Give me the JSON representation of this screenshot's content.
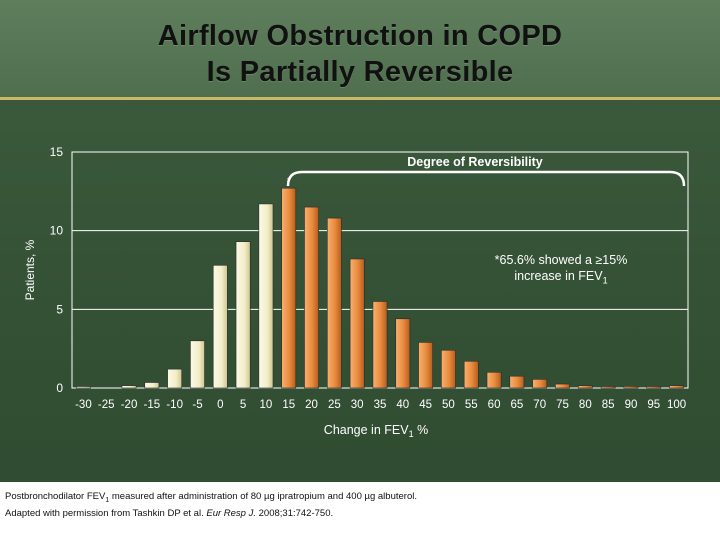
{
  "slide": {
    "title_line1": "Airflow Obstruction in COPD",
    "title_line2": "Is Partially Reversible"
  },
  "chart_data": {
    "type": "bar",
    "title": "Degree of Reversibility",
    "xlabel_main": "Change in FEV",
    "xlabel_sub": "1",
    "xlabel_unit": " %",
    "ylabel": "Patients, %",
    "ylim": [
      0,
      15
    ],
    "yticks": [
      "0",
      "5",
      "10",
      "15"
    ],
    "categories": [
      "-30",
      "-25",
      "-20",
      "-15",
      "-10",
      "-5",
      "0",
      "5",
      "10",
      "15",
      "20",
      "25",
      "30",
      "35",
      "40",
      "45",
      "50",
      "55",
      "60",
      "65",
      "70",
      "75",
      "80",
      "85",
      "90",
      "95",
      "100"
    ],
    "values": [
      0.05,
      0,
      0.15,
      0.35,
      1.2,
      3.0,
      7.8,
      9.3,
      11.7,
      12.7,
      11.5,
      10.8,
      8.2,
      5.5,
      4.4,
      2.9,
      2.4,
      1.7,
      1.0,
      0.75,
      0.55,
      0.25,
      0.15,
      0.05,
      0.1,
      0.05,
      0.15
    ],
    "colors": {
      "below_threshold": "#f2eec8",
      "above_threshold": "#e98a3c",
      "grid": "#ffffff"
    },
    "brace_marker": "*",
    "annotation_line1": "*65.6% showed a ≥15%",
    "annotation_line2_main": "increase in FEV",
    "annotation_line2_sub": "1"
  },
  "footer": {
    "line1_a": "Postbronchodilator FEV",
    "line1_sub": "1",
    "line1_b": " measured after administration of 80 µg ipratropium and 400 µg albuterol.",
    "line2_a": "Adapted with permission from Tashkin DP et al. ",
    "line2_journal": "Eur Resp J.",
    "line2_b": " 2008;31:742-750."
  }
}
